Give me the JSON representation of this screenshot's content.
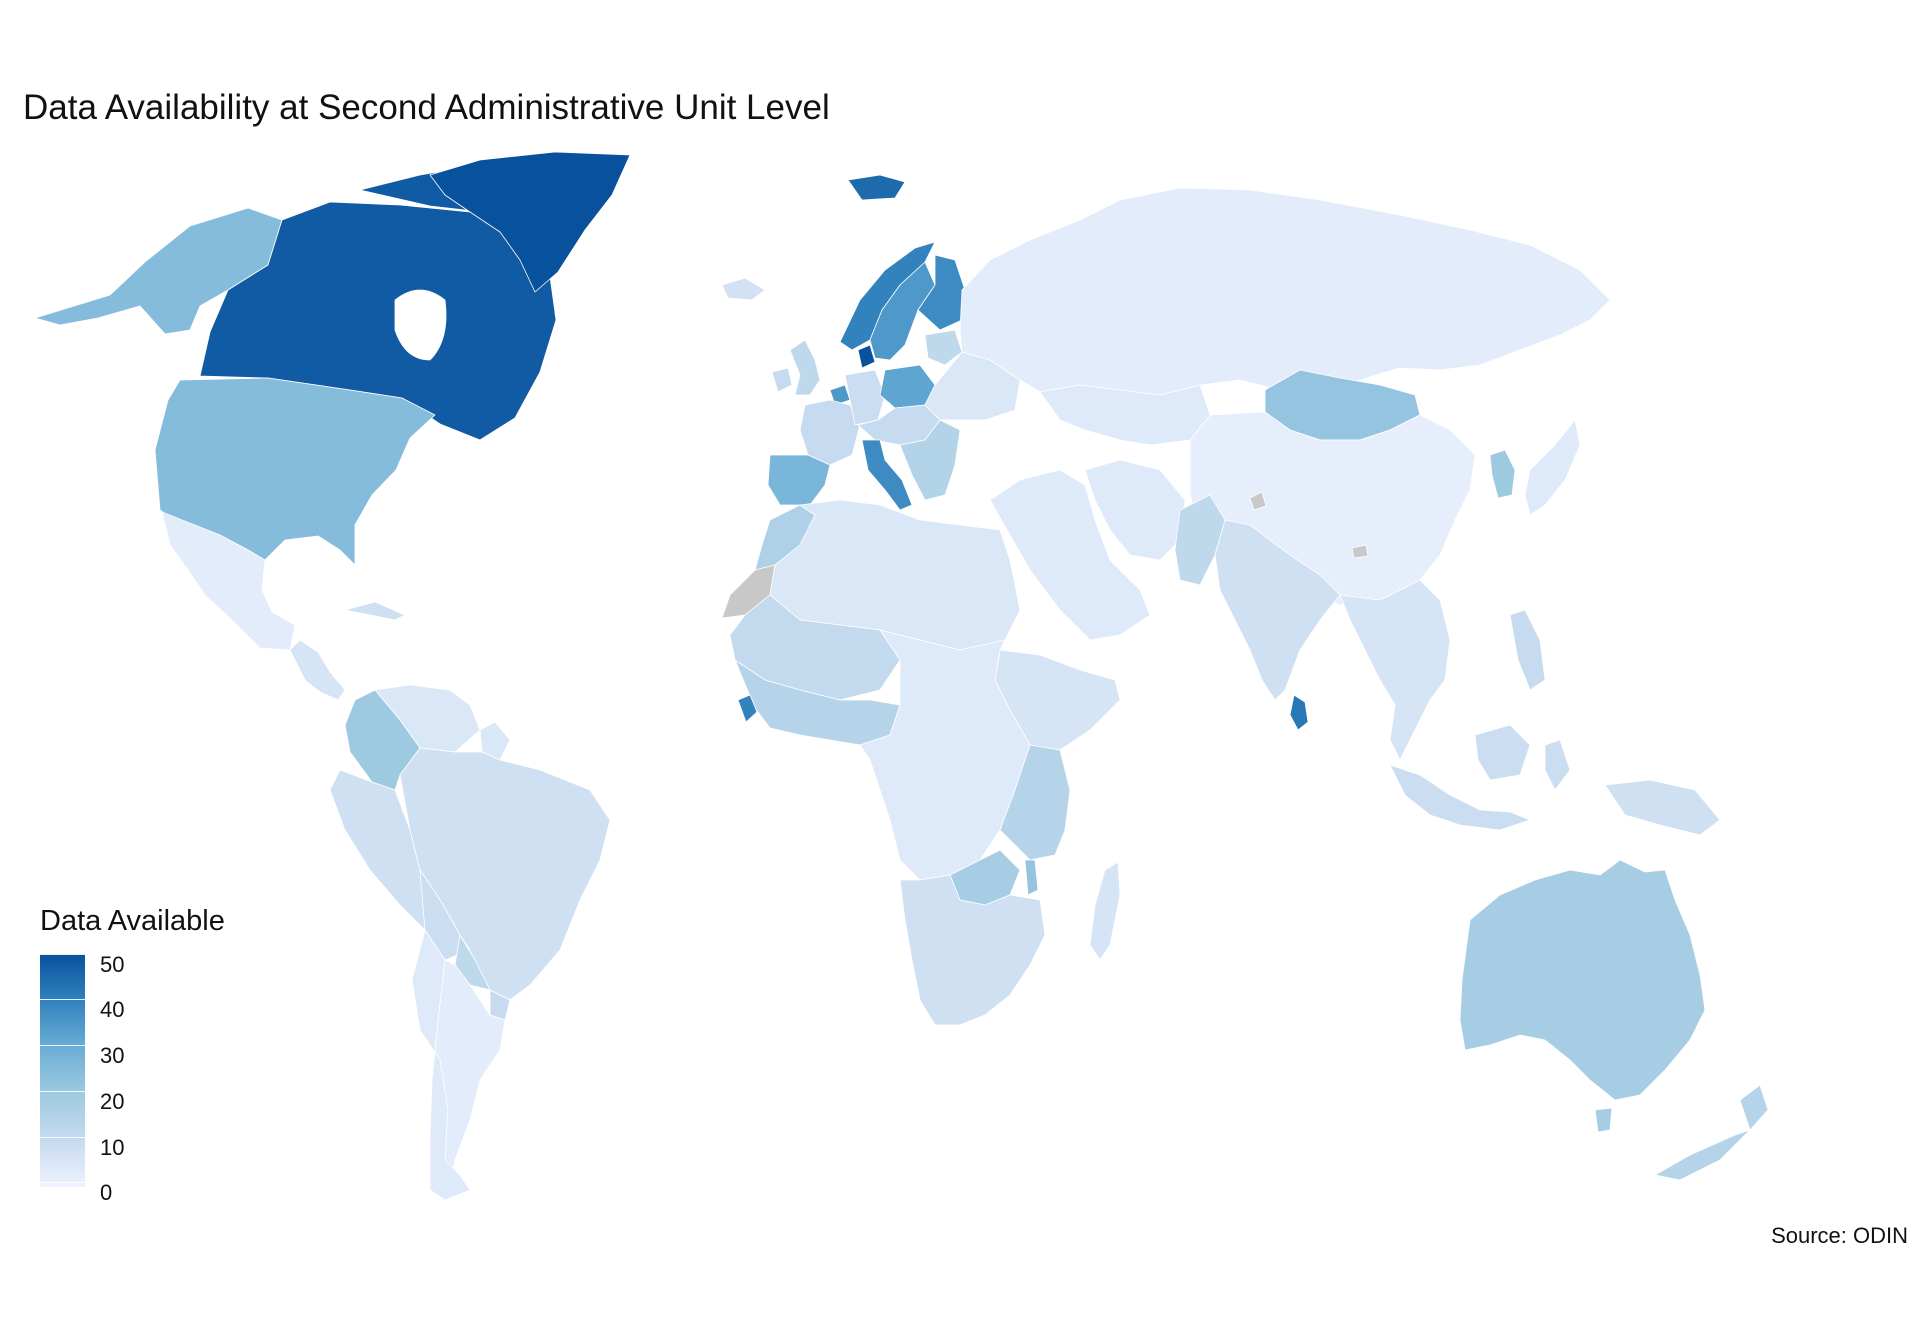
{
  "title": "Data Availability at Second Administrative Unit Level",
  "caption": "Source: ODIN",
  "legend": {
    "title": "Data Available",
    "ticks": [
      "50",
      "40",
      "30",
      "20",
      "10",
      "0"
    ],
    "range": [
      0,
      50
    ],
    "low_color": "#eef3ff",
    "high_color": "#08519c",
    "missing_color": "#c8c8c8"
  },
  "regions": [
    {
      "id": "canada",
      "value": 48
    },
    {
      "id": "greenland",
      "value": 50
    },
    {
      "id": "svalbard",
      "value": 45
    },
    {
      "id": "alaska",
      "value": 25
    },
    {
      "id": "usa",
      "value": 25
    },
    {
      "id": "mexico",
      "value": 3
    },
    {
      "id": "central-america",
      "value": 6
    },
    {
      "id": "cuba",
      "value": 8
    },
    {
      "id": "colombia",
      "value": 20
    },
    {
      "id": "venezuela",
      "value": 5
    },
    {
      "id": "guyana",
      "value": 5
    },
    {
      "id": "brazil",
      "value": 8
    },
    {
      "id": "peru",
      "value": 8
    },
    {
      "id": "bolivia",
      "value": 9
    },
    {
      "id": "paraguay",
      "value": 12
    },
    {
      "id": "chile",
      "value": 4
    },
    {
      "id": "argentina",
      "value": 3
    },
    {
      "id": "uruguay",
      "value": 10
    },
    {
      "id": "iceland",
      "value": 7
    },
    {
      "id": "uk",
      "value": 12
    },
    {
      "id": "ireland",
      "value": 10
    },
    {
      "id": "norway",
      "value": 40
    },
    {
      "id": "sweden",
      "value": 35
    },
    {
      "id": "finland",
      "value": 38
    },
    {
      "id": "denmark",
      "value": 50
    },
    {
      "id": "baltics",
      "value": 12
    },
    {
      "id": "france",
      "value": 10
    },
    {
      "id": "benelux",
      "value": 35
    },
    {
      "id": "germany",
      "value": 9
    },
    {
      "id": "poland",
      "value": 32
    },
    {
      "id": "spain",
      "value": 27
    },
    {
      "id": "italy",
      "value": 38
    },
    {
      "id": "central-europe",
      "value": 10
    },
    {
      "id": "balkans",
      "value": 15
    },
    {
      "id": "eastern-europe",
      "value": 5
    },
    {
      "id": "russia",
      "value": 3
    },
    {
      "id": "kazakhstan",
      "value": 4
    },
    {
      "id": "mongolia",
      "value": 22
    },
    {
      "id": "china",
      "value": 2
    },
    {
      "id": "korea",
      "value": 20
    },
    {
      "id": "japan",
      "value": 4
    },
    {
      "id": "middle-east",
      "value": 4
    },
    {
      "id": "iran",
      "value": 4
    },
    {
      "id": "pakistan",
      "value": 12
    },
    {
      "id": "india",
      "value": 8
    },
    {
      "id": "sri-lanka",
      "value": 42
    },
    {
      "id": "southeast-asia",
      "value": 6
    },
    {
      "id": "philippines",
      "value": 10
    },
    {
      "id": "indonesia",
      "value": 9
    },
    {
      "id": "png",
      "value": 8
    },
    {
      "id": "australia",
      "value": 18
    },
    {
      "id": "new-zealand",
      "value": 14
    },
    {
      "id": "north-africa",
      "value": 5
    },
    {
      "id": "morocco",
      "value": 16
    },
    {
      "id": "western-sahara",
      "value": null
    },
    {
      "id": "sahel",
      "value": 11
    },
    {
      "id": "west-africa",
      "value": 14
    },
    {
      "id": "sierra-leone",
      "value": 40
    },
    {
      "id": "central-africa",
      "value": 4
    },
    {
      "id": "horn-of-africa",
      "value": 6
    },
    {
      "id": "kenya-tanzania",
      "value": 14
    },
    {
      "id": "zambia",
      "value": 18
    },
    {
      "id": "malawi",
      "value": 22
    },
    {
      "id": "southern-africa",
      "value": 8
    },
    {
      "id": "madagascar",
      "value": 6
    },
    {
      "id": "kashmir",
      "value": null
    },
    {
      "id": "bhutan",
      "value": null
    }
  ]
}
